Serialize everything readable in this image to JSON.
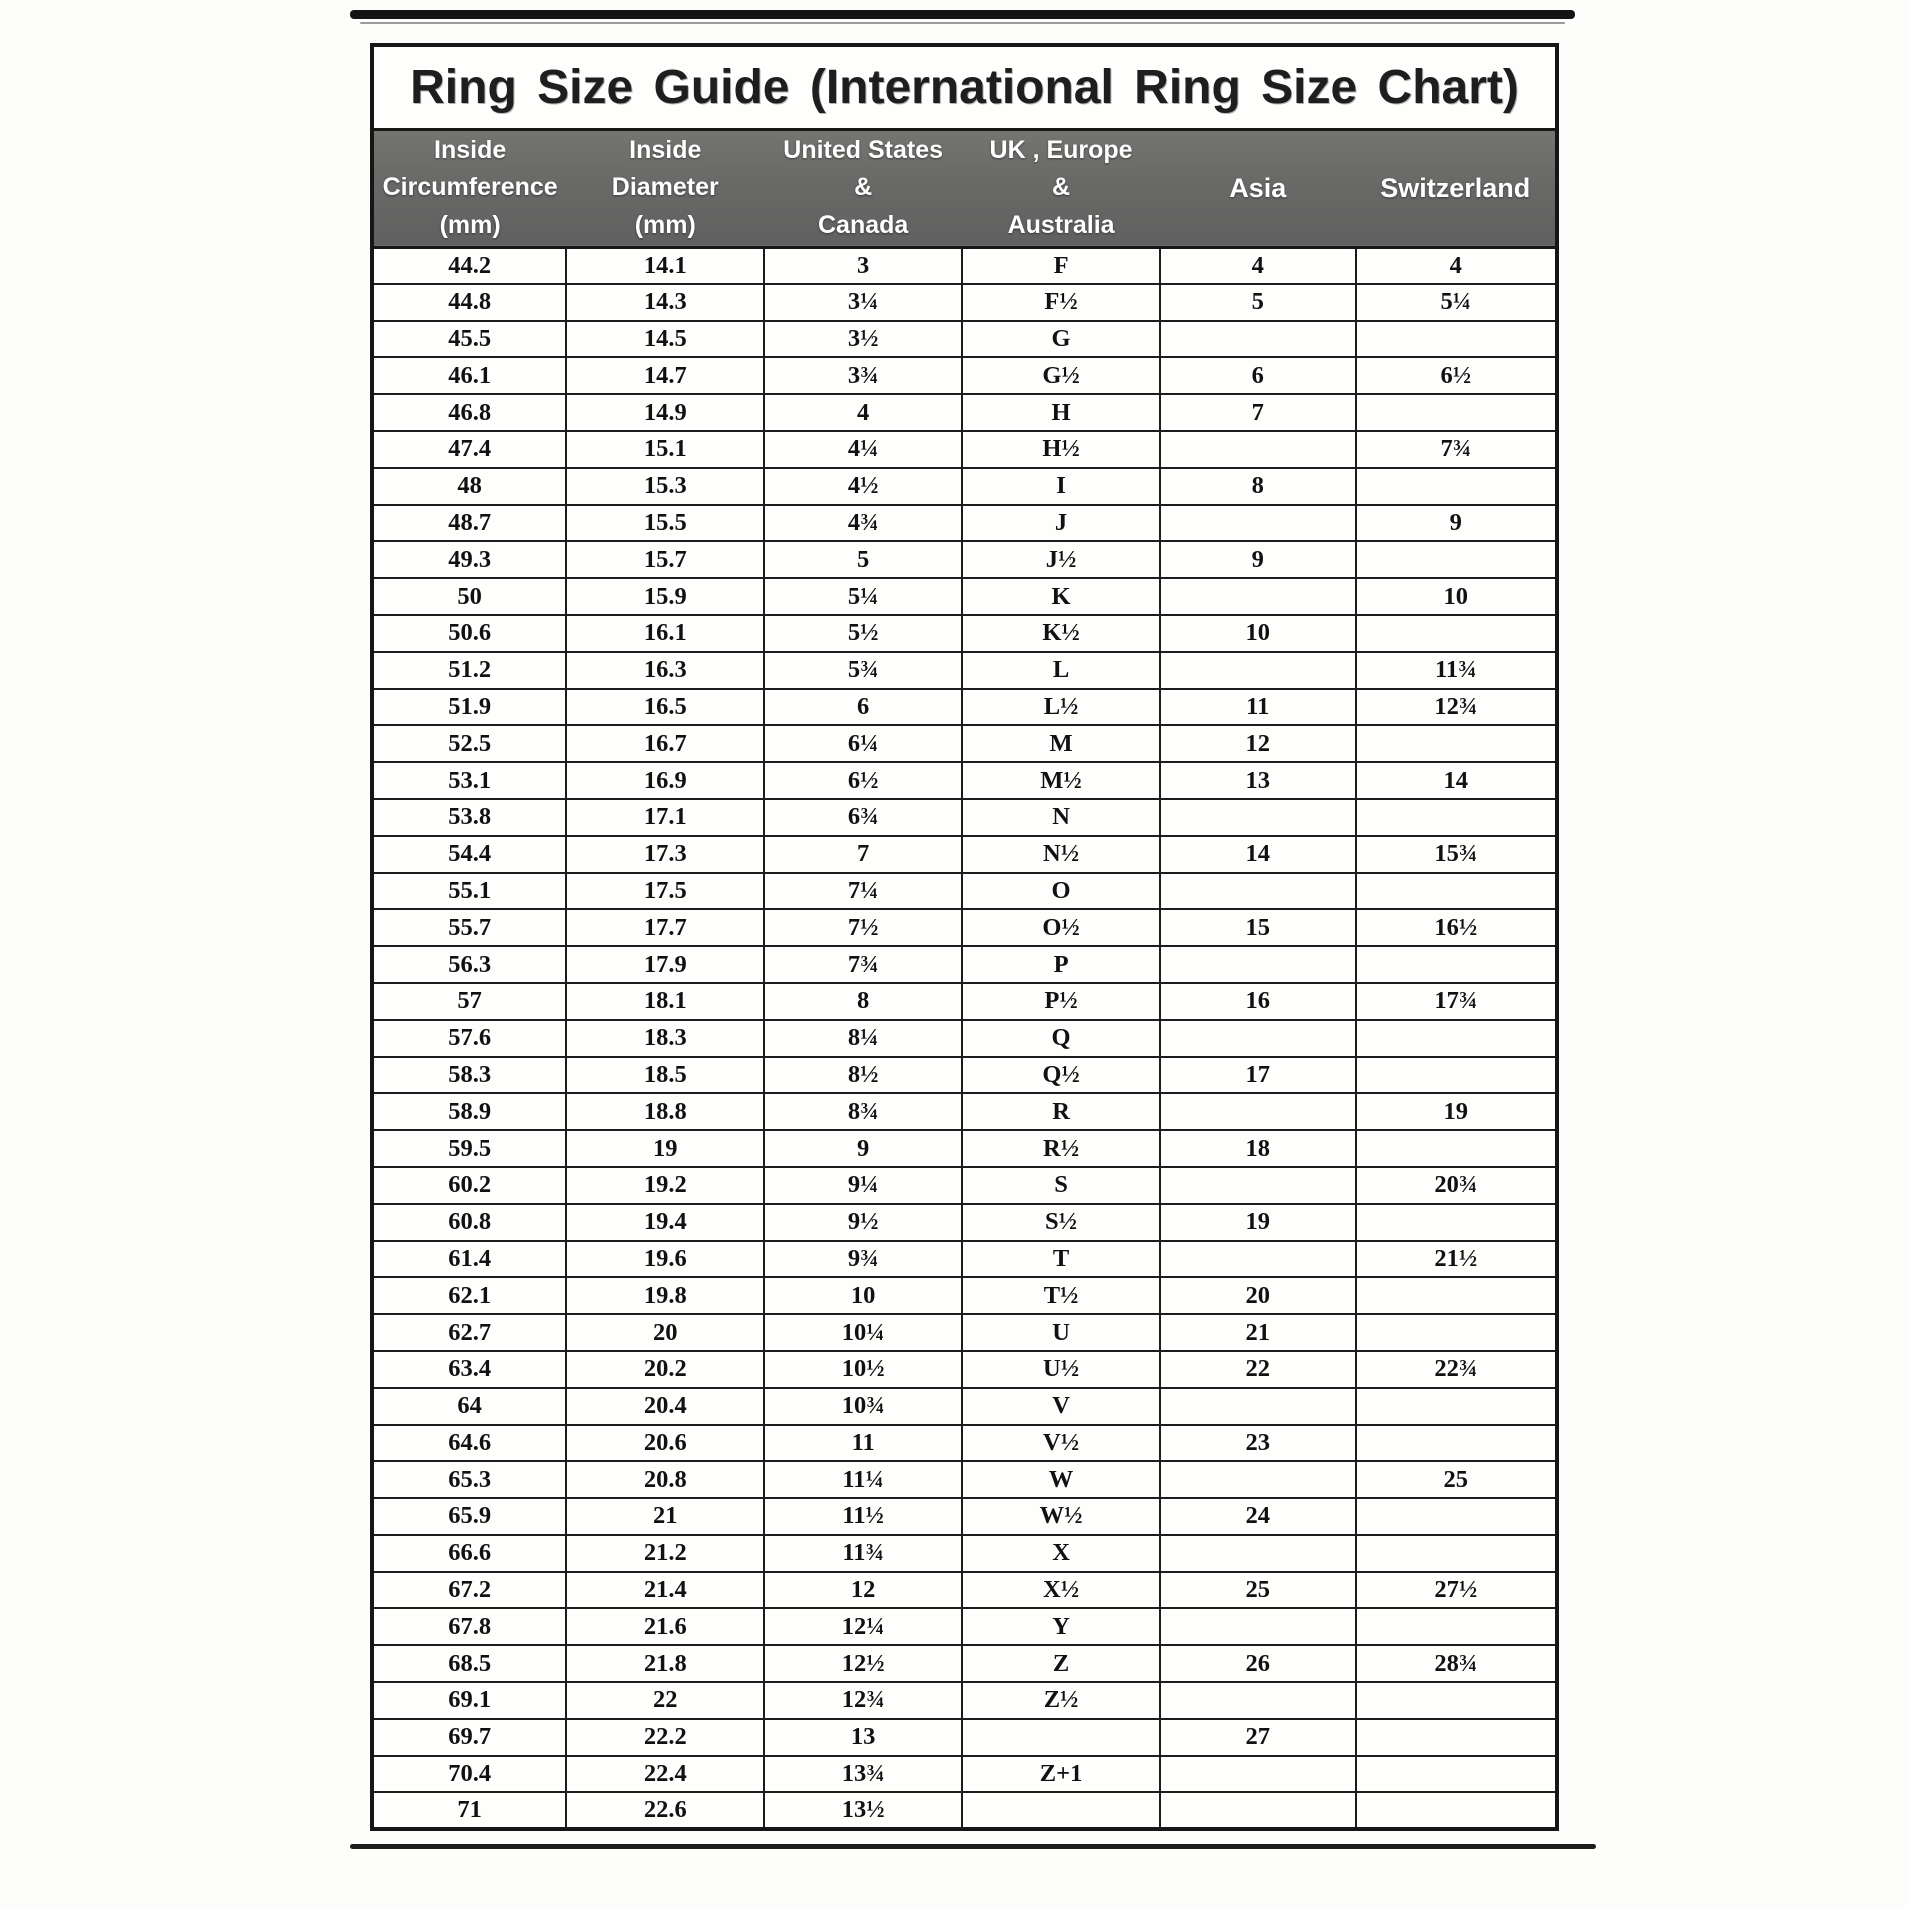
{
  "title": "Ring Size Guide (International Ring Size Chart)",
  "colors": {
    "header_bg": "#696967",
    "header_text": "#ffffff",
    "border": "#161616",
    "title_text": "#1e1e1e",
    "paper": "#fdfdfc"
  },
  "table": {
    "columns": [
      "Inside\nCircumference\n(mm)",
      "Inside\nDiameter\n(mm)",
      "United States\n&\nCanada",
      "UK , Europe\n&\nAustralia",
      "Asia",
      "Switzerland"
    ],
    "column_keys": [
      "inside-circumference-mm",
      "inside-diameter-mm",
      "us-canada",
      "uk-europe-australia",
      "asia",
      "switzerland"
    ],
    "rows": [
      [
        "44.2",
        "14.1",
        "3",
        "F",
        "4",
        "4"
      ],
      [
        "44.8",
        "14.3",
        "3¼",
        "F½",
        "5",
        "5¼"
      ],
      [
        "45.5",
        "14.5",
        "3½",
        "G",
        "",
        ""
      ],
      [
        "46.1",
        "14.7",
        "3¾",
        "G½",
        "6",
        "6½"
      ],
      [
        "46.8",
        "14.9",
        "4",
        "H",
        "7",
        ""
      ],
      [
        "47.4",
        "15.1",
        "4¼",
        "H½",
        "",
        "7¾"
      ],
      [
        "48",
        "15.3",
        "4½",
        "I",
        "8",
        ""
      ],
      [
        "48.7",
        "15.5",
        "4¾",
        "J",
        "",
        "9"
      ],
      [
        "49.3",
        "15.7",
        "5",
        "J½",
        "9",
        ""
      ],
      [
        "50",
        "15.9",
        "5¼",
        "K",
        "",
        "10"
      ],
      [
        "50.6",
        "16.1",
        "5½",
        "K½",
        "10",
        ""
      ],
      [
        "51.2",
        "16.3",
        "5¾",
        "L",
        "",
        "11¾"
      ],
      [
        "51.9",
        "16.5",
        "6",
        "L½",
        "11",
        "12¾"
      ],
      [
        "52.5",
        "16.7",
        "6¼",
        "M",
        "12",
        ""
      ],
      [
        "53.1",
        "16.9",
        "6½",
        "M½",
        "13",
        "14"
      ],
      [
        "53.8",
        "17.1",
        "6¾",
        "N",
        "",
        ""
      ],
      [
        "54.4",
        "17.3",
        "7",
        "N½",
        "14",
        "15¾"
      ],
      [
        "55.1",
        "17.5",
        "7¼",
        "O",
        "",
        ""
      ],
      [
        "55.7",
        "17.7",
        "7½",
        "O½",
        "15",
        "16½"
      ],
      [
        "56.3",
        "17.9",
        "7¾",
        "P",
        "",
        ""
      ],
      [
        "57",
        "18.1",
        "8",
        "P½",
        "16",
        "17¾"
      ],
      [
        "57.6",
        "18.3",
        "8¼",
        "Q",
        "",
        ""
      ],
      [
        "58.3",
        "18.5",
        "8½",
        "Q½",
        "17",
        ""
      ],
      [
        "58.9",
        "18.8",
        "8¾",
        "R",
        "",
        "19"
      ],
      [
        "59.5",
        "19",
        "9",
        "R½",
        "18",
        ""
      ],
      [
        "60.2",
        "19.2",
        "9¼",
        "S",
        "",
        "20¾"
      ],
      [
        "60.8",
        "19.4",
        "9½",
        "S½",
        "19",
        ""
      ],
      [
        "61.4",
        "19.6",
        "9¾",
        "T",
        "",
        "21½"
      ],
      [
        "62.1",
        "19.8",
        "10",
        "T½",
        "20",
        ""
      ],
      [
        "62.7",
        "20",
        "10¼",
        "U",
        "21",
        ""
      ],
      [
        "63.4",
        "20.2",
        "10½",
        "U½",
        "22",
        "22¾"
      ],
      [
        "64",
        "20.4",
        "10¾",
        "V",
        "",
        ""
      ],
      [
        "64.6",
        "20.6",
        "11",
        "V½",
        "23",
        ""
      ],
      [
        "65.3",
        "20.8",
        "11¼",
        "W",
        "",
        "25"
      ],
      [
        "65.9",
        "21",
        "11½",
        "W½",
        "24",
        ""
      ],
      [
        "66.6",
        "21.2",
        "11¾",
        "X",
        "",
        ""
      ],
      [
        "67.2",
        "21.4",
        "12",
        "X½",
        "25",
        "27½"
      ],
      [
        "67.8",
        "21.6",
        "12¼",
        "Y",
        "",
        ""
      ],
      [
        "68.5",
        "21.8",
        "12½",
        "Z",
        "26",
        "28¾"
      ],
      [
        "69.1",
        "22",
        "12¾",
        "Z½",
        "",
        ""
      ],
      [
        "69.7",
        "22.2",
        "13",
        "",
        "27",
        ""
      ],
      [
        "70.4",
        "22.4",
        "13¾",
        "Z+1",
        "",
        ""
      ],
      [
        "71",
        "22.6",
        "13½",
        "",
        "",
        ""
      ]
    ]
  }
}
